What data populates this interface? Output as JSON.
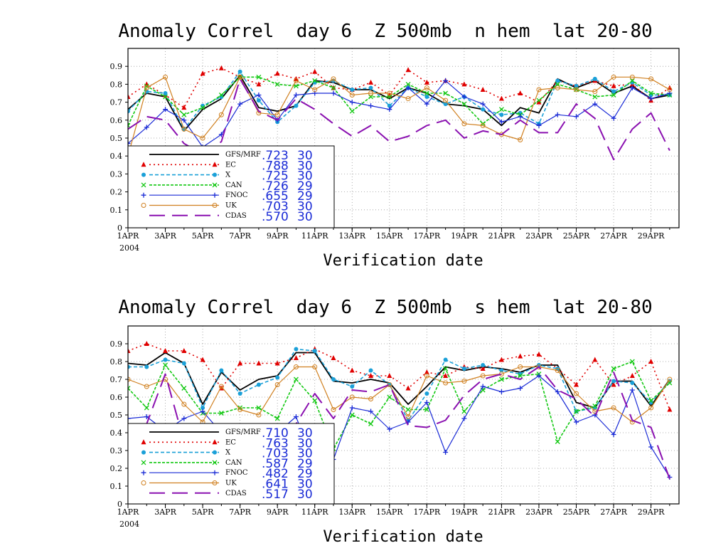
{
  "chart_data": [
    {
      "type": "line",
      "title": "Anomaly Correl  day 6  Z 500mb  n hem  lat 20-80",
      "xlabel": "Verification date",
      "xlim": [
        1,
        30.5
      ],
      "ylim": [
        0,
        1
      ],
      "yticks": [
        0,
        0.1,
        0.2,
        0.3,
        0.4,
        0.5,
        0.6,
        0.7,
        0.8,
        0.9
      ],
      "x_ticks": [
        {
          "day": 1,
          "label": "1APR"
        },
        {
          "day": 3,
          "label": "3APR"
        },
        {
          "day": 5,
          "label": "5APR"
        },
        {
          "day": 7,
          "label": "7APR"
        },
        {
          "day": 9,
          "label": "9APR"
        },
        {
          "day": 11,
          "label": "11APR"
        },
        {
          "day": 13,
          "label": "13APR"
        },
        {
          "day": 15,
          "label": "15APR"
        },
        {
          "day": 17,
          "label": "17APR"
        },
        {
          "day": 19,
          "label": "19APR"
        },
        {
          "day": 21,
          "label": "21APR"
        },
        {
          "day": 23,
          "label": "23APR"
        },
        {
          "day": 25,
          "label": "25APR"
        },
        {
          "day": 27,
          "label": "27APR"
        },
        {
          "day": 29,
          "label": "29APR"
        }
      ],
      "year_label": "2004",
      "grid": true,
      "legend_position": "bottom-left",
      "series": [
        {
          "name": "GFS/MRF",
          "mean": ".723",
          "count": "30",
          "color": "#000000",
          "values": [
            0.66,
            0.75,
            0.73,
            0.54,
            0.66,
            0.72,
            0.85,
            0.67,
            0.65,
            0.68,
            0.82,
            0.81,
            0.77,
            0.77,
            0.72,
            0.78,
            0.75,
            0.69,
            0.68,
            0.66,
            0.57,
            0.67,
            0.64,
            0.83,
            0.78,
            0.82,
            0.75,
            0.79,
            0.72,
            0.74
          ]
        },
        {
          "name": "EC",
          "mean": ".788",
          "count": "30",
          "color": "#e00000",
          "values": [
            0.73,
            0.8,
            0.74,
            0.67,
            0.86,
            0.89,
            0.84,
            0.8,
            0.86,
            0.83,
            0.87,
            0.78,
            0.77,
            0.81,
            0.74,
            0.88,
            0.81,
            0.82,
            0.8,
            0.77,
            0.72,
            0.75,
            0.7,
            0.82,
            0.79,
            0.82,
            0.79,
            0.8,
            0.71,
            0.78
          ]
        },
        {
          "name": "X",
          "mean": ".725",
          "count": "30",
          "color": "#1aa0d8",
          "values": [
            0.65,
            0.76,
            0.75,
            0.55,
            0.68,
            0.73,
            0.87,
            0.71,
            0.59,
            0.68,
            0.81,
            0.82,
            0.77,
            0.78,
            0.68,
            0.78,
            0.73,
            0.69,
            0.73,
            0.66,
            0.63,
            0.64,
            0.58,
            0.82,
            0.79,
            0.83,
            0.76,
            0.81,
            0.74,
            0.74
          ]
        },
        {
          "name": "CAN",
          "mean": ".726",
          "count": "29",
          "color": "#12c812",
          "values": [
            0.57,
            0.79,
            0.73,
            0.63,
            0.67,
            0.74,
            0.84,
            0.84,
            0.8,
            0.79,
            0.82,
            0.78,
            0.65,
            0.73,
            0.73,
            0.8,
            0.75,
            0.75,
            0.69,
            0.58,
            0.66,
            0.63,
            0.71,
            0.8,
            0.77,
            0.73,
            0.74,
            0.82,
            0.75,
            0.74
          ]
        },
        {
          "name": "FNOC",
          "mean": ".655",
          "count": "29",
          "color": "#1a2bd6",
          "values": [
            0.47,
            0.56,
            0.66,
            0.6,
            0.45,
            0.52,
            0.69,
            0.74,
            0.6,
            0.74,
            0.75,
            0.75,
            0.7,
            0.68,
            0.66,
            0.78,
            0.69,
            0.82,
            0.73,
            0.69,
            0.59,
            0.62,
            0.57,
            0.63,
            0.62,
            0.69,
            0.61,
            0.78,
            0.72,
            0.75
          ]
        },
        {
          "name": "UK",
          "mean": ".703",
          "count": "30",
          "color": "#d08020",
          "values": [
            0.4,
            0.78,
            0.84,
            0.55,
            0.5,
            0.63,
            0.84,
            0.64,
            0.63,
            0.82,
            0.77,
            0.83,
            0.74,
            0.75,
            0.75,
            0.72,
            0.78,
            0.71,
            0.58,
            0.57,
            0.52,
            0.49,
            0.77,
            0.78,
            0.77,
            0.76,
            0.84,
            0.84,
            0.83,
            0.77
          ]
        },
        {
          "name": "CDAS",
          "mean": ".570",
          "count": "30",
          "color": "#8a10b0",
          "values": [
            0.55,
            0.62,
            0.6,
            0.47,
            0.41,
            0.48,
            0.83,
            0.65,
            0.6,
            0.72,
            0.66,
            0.58,
            0.51,
            0.57,
            0.48,
            0.51,
            0.57,
            0.6,
            0.5,
            0.54,
            0.52,
            0.6,
            0.53,
            0.53,
            0.69,
            0.61,
            0.38,
            0.55,
            0.64,
            0.43
          ]
        }
      ]
    },
    {
      "type": "line",
      "title": "Anomaly Correl  day 6  Z 500mb  s hem  lat 20-80",
      "xlabel": "Verification date",
      "xlim": [
        1,
        30.5
      ],
      "ylim": [
        0,
        1
      ],
      "yticks": [
        0,
        0.1,
        0.2,
        0.3,
        0.4,
        0.5,
        0.6,
        0.7,
        0.8,
        0.9
      ],
      "x_ticks": [
        {
          "day": 1,
          "label": "1APR"
        },
        {
          "day": 3,
          "label": "3APR"
        },
        {
          "day": 5,
          "label": "5APR"
        },
        {
          "day": 7,
          "label": "7APR"
        },
        {
          "day": 9,
          "label": "9APR"
        },
        {
          "day": 11,
          "label": "11APR"
        },
        {
          "day": 13,
          "label": "13APR"
        },
        {
          "day": 15,
          "label": "15APR"
        },
        {
          "day": 17,
          "label": "17APR"
        },
        {
          "day": 19,
          "label": "19APR"
        },
        {
          "day": 21,
          "label": "21APR"
        },
        {
          "day": 23,
          "label": "23APR"
        },
        {
          "day": 25,
          "label": "25APR"
        },
        {
          "day": 27,
          "label": "27APR"
        },
        {
          "day": 29,
          "label": "29APR"
        }
      ],
      "year_label": "2004",
      "grid": true,
      "legend_position": "bottom-left",
      "series": [
        {
          "name": "GFS/MRF",
          "mean": ".710",
          "count": "30",
          "color": "#000000",
          "values": [
            0.79,
            0.78,
            0.85,
            0.79,
            0.56,
            0.74,
            0.64,
            0.7,
            0.72,
            0.85,
            0.85,
            0.69,
            0.68,
            0.7,
            0.68,
            0.56,
            0.66,
            0.77,
            0.75,
            0.77,
            0.76,
            0.74,
            0.78,
            0.78,
            0.57,
            0.54,
            0.69,
            0.69,
            0.55,
            0.7
          ]
        },
        {
          "name": "EC",
          "mean": ".763",
          "count": "30",
          "color": "#e00000",
          "values": [
            0.86,
            0.9,
            0.86,
            0.86,
            0.81,
            0.65,
            0.79,
            0.79,
            0.79,
            0.82,
            0.87,
            0.82,
            0.75,
            0.72,
            0.72,
            0.65,
            0.74,
            0.72,
            0.77,
            0.76,
            0.81,
            0.83,
            0.84,
            0.76,
            0.67,
            0.81,
            0.67,
            0.72,
            0.8,
            0.53
          ]
        },
        {
          "name": "X",
          "mean": ".703",
          "count": "30",
          "color": "#1aa0d8",
          "values": [
            0.77,
            0.77,
            0.81,
            0.79,
            0.54,
            0.75,
            0.62,
            0.67,
            0.71,
            0.87,
            0.86,
            0.7,
            0.66,
            0.75,
            0.67,
            0.47,
            0.62,
            0.81,
            0.76,
            0.78,
            0.75,
            0.73,
            0.78,
            0.76,
            0.52,
            0.54,
            0.69,
            0.68,
            0.57,
            0.69
          ]
        },
        {
          "name": "CAN",
          "mean": ".587",
          "count": "29",
          "color": "#12c812",
          "values": [
            0.65,
            0.54,
            0.78,
            0.65,
            0.51,
            0.51,
            0.54,
            0.54,
            0.48,
            0.7,
            0.58,
            0.31,
            0.5,
            0.45,
            0.6,
            0.53,
            0.53,
            0.76,
            0.52,
            0.64,
            0.7,
            0.72,
            0.73,
            0.35,
            0.52,
            0.55,
            0.76,
            0.8,
            0.58,
            0.68
          ]
        },
        {
          "name": "FNOC",
          "mean": ".482",
          "count": "29",
          "color": "#1a2bd6",
          "values": [
            0.48,
            0.49,
            0.41,
            0.48,
            0.52,
            0.4,
            0.31,
            0.44,
            0.4,
            0.49,
            0.21,
            0.25,
            0.54,
            0.52,
            0.42,
            0.46,
            0.57,
            0.29,
            0.48,
            0.66,
            0.63,
            0.65,
            0.72,
            0.63,
            0.46,
            0.5,
            0.39,
            0.64,
            0.32,
            0.15
          ]
        },
        {
          "name": "UK",
          "mean": ".641",
          "count": "30",
          "color": "#d08020",
          "values": [
            0.7,
            0.66,
            0.7,
            0.56,
            0.46,
            0.66,
            0.53,
            0.5,
            0.67,
            0.77,
            0.77,
            0.53,
            0.6,
            0.59,
            0.67,
            0.49,
            0.72,
            0.68,
            0.69,
            0.72,
            0.73,
            0.77,
            0.77,
            0.75,
            0.62,
            0.52,
            0.54,
            0.46,
            0.54,
            0.7
          ]
        },
        {
          "name": "CDAS",
          "mean": ".517",
          "count": "30",
          "color": "#8a10b0",
          "values": [
            0.18,
            0.45,
            0.73,
            0.35,
            0.43,
            0.39,
            0.36,
            0.31,
            0.3,
            0.45,
            0.62,
            0.48,
            0.64,
            0.63,
            0.67,
            0.44,
            0.43,
            0.47,
            0.61,
            0.7,
            0.73,
            0.7,
            0.77,
            0.64,
            0.59,
            0.49,
            0.74,
            0.47,
            0.43,
            0.14
          ]
        }
      ]
    }
  ]
}
